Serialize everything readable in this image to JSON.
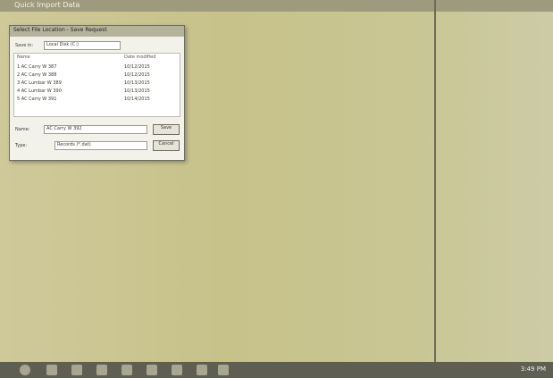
{
  "window": {
    "title": "Quick Import Data"
  },
  "dialog": {
    "title": "Select File Location - Save Request",
    "save_in_label": "Save in:",
    "save_in_value": "Local Disk (C:)",
    "column_name": "Name",
    "column_date": "Date modified",
    "files": [
      {
        "name": "1 AC Carry W 387",
        "date": "10/12/2015"
      },
      {
        "name": "2 AC Carry W 388",
        "date": "10/12/2015"
      },
      {
        "name": "3 AC Lumbar W 389",
        "date": "10/13/2015"
      },
      {
        "name": "4 AC Lumbar W 390",
        "date": "10/13/2015"
      },
      {
        "name": "5 AC Carry W 391",
        "date": "10/14/2015"
      }
    ],
    "file_name_label": "Name:",
    "file_name_value": "AC Carry W 392",
    "save_button": "Save",
    "type_label": "Type:",
    "type_value": "Records (*.dat)",
    "cancel_button": "Cancel"
  },
  "taskbar": {
    "time": "3:49 PM"
  }
}
